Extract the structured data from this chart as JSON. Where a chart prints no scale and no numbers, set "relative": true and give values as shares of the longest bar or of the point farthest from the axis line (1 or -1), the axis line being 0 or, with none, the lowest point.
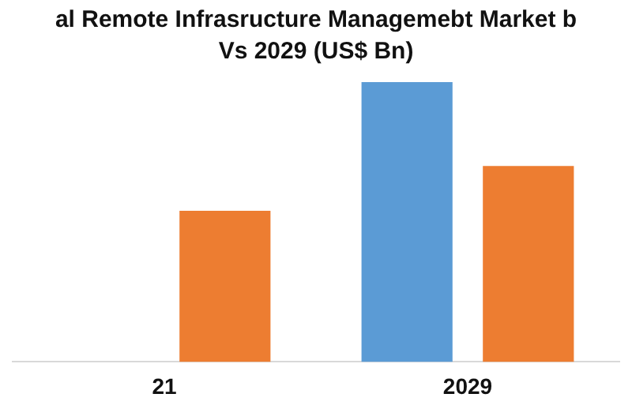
{
  "chart_data": {
    "type": "bar",
    "title": "al Remote Infrasructure Managemebt Market b",
    "subtitle": "Vs 2029 (US$ Bn)",
    "categories": [
      "21",
      "2029"
    ],
    "relative": true,
    "series": [
      {
        "color": "#5b9bd5",
        "values": [
          null,
          1
        ]
      },
      {
        "color": "#ed7d31",
        "values": [
          0.54,
          0.7
        ]
      }
    ],
    "grid": false,
    "legend": false
  }
}
